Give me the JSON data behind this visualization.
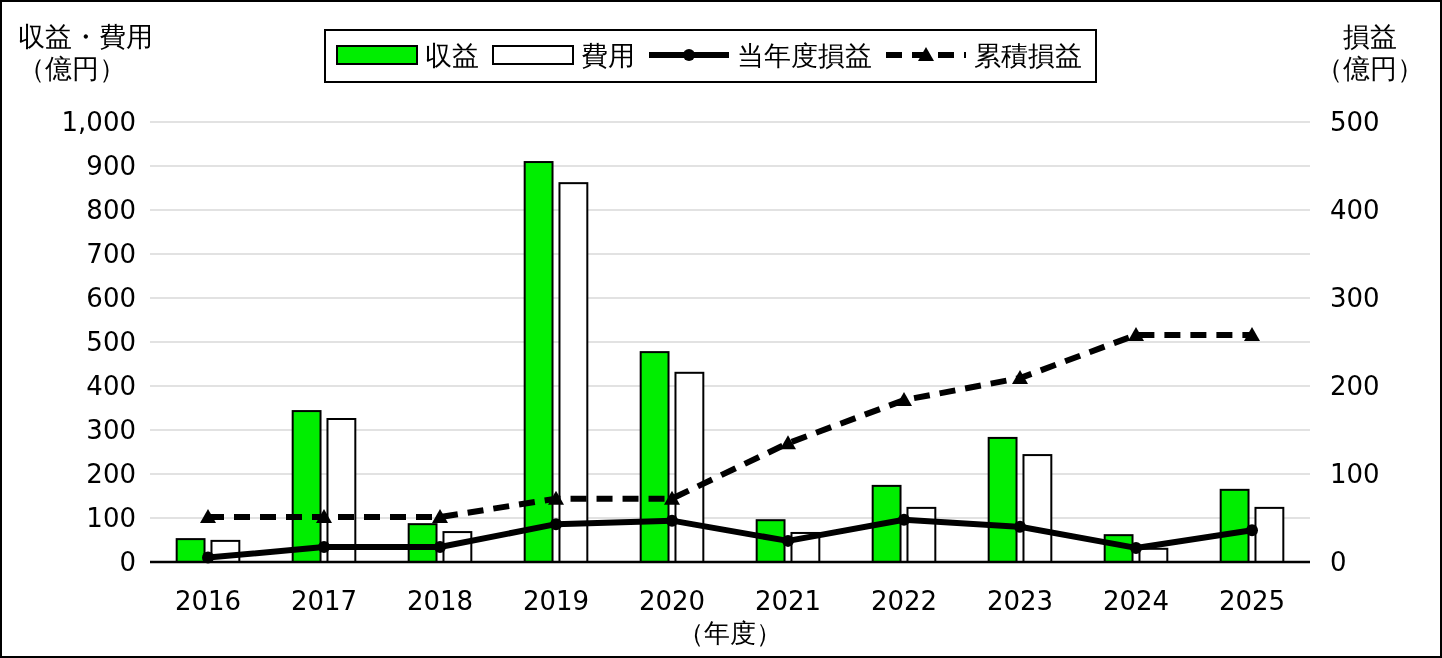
{
  "chart_data": {
    "type": "bar",
    "ylabel": "収益・費用（億円）",
    "y2label": "損益（億円）",
    "xlabel": "（年度）",
    "categories": [
      "2016",
      "2017",
      "2018",
      "2019",
      "2020",
      "2021",
      "2022",
      "2023",
      "2024",
      "2025"
    ],
    "series": [
      {
        "name": "収益",
        "color": "#00ee00",
        "values": [
          52,
          343,
          86,
          909,
          477,
          95,
          173,
          282,
          61,
          164
        ]
      },
      {
        "name": "費用",
        "color": "#ffffff",
        "values": [
          48,
          325,
          68,
          861,
          430,
          66,
          123,
          243,
          30,
          123
        ]
      },
      {
        "name": "当年度損益",
        "type": "line",
        "axis": "y2",
        "color": "#000000",
        "marker": "circle",
        "line_style": "solid",
        "values": [
          5,
          17,
          17,
          43,
          47,
          24,
          48,
          40,
          16,
          36
        ]
      },
      {
        "name": "累積損益",
        "type": "line",
        "axis": "y2",
        "color": "#000000",
        "marker": "triangle",
        "line_style": "dashed",
        "values": [
          51,
          51,
          51,
          72,
          72,
          135,
          184,
          209,
          258,
          258
        ]
      }
    ],
    "ylim": [
      0,
      1000
    ],
    "yticks": [
      0,
      100,
      200,
      300,
      400,
      500,
      600,
      700,
      800,
      900,
      {
        "value": 1000,
        "label": "1,000"
      }
    ],
    "y2lim": [
      0,
      500
    ],
    "y2ticks": [
      0,
      100,
      200,
      300,
      400,
      500
    ],
    "grid": "y",
    "legend": "top"
  }
}
